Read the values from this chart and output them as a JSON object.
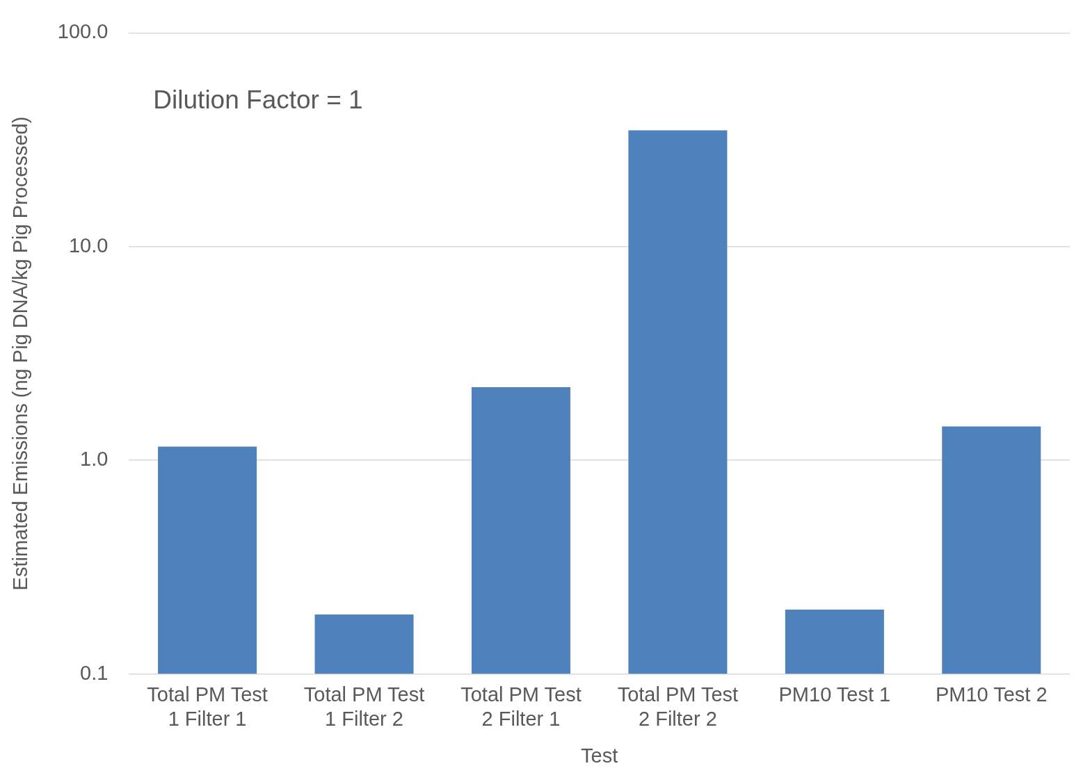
{
  "chart_data": {
    "type": "bar",
    "xlabel": "Test",
    "ylabel": "Estimated Emissions (ng Pig DNA/kg Pig Processed)",
    "categories": [
      "Total PM Test 1 Filter 1",
      "Total PM Test 1 Filter 2",
      "Total PM Test 2 Filter 1",
      "Total PM Test 2 Filter 2",
      "PM10 Test 1",
      "PM10 Test 2"
    ],
    "values": [
      1.16,
      0.19,
      2.2,
      35,
      0.2,
      1.44
    ],
    "color": "#4f81bd",
    "log": "y",
    "ylim": [
      0.1,
      100
    ],
    "yticks": [
      {
        "value": 0.1,
        "label": "0.1"
      },
      {
        "value": 1,
        "label": "1.0"
      },
      {
        "value": 10,
        "label": "10.0"
      },
      {
        "value": 100,
        "label": "100.0"
      }
    ],
    "grid": "y",
    "legend": false,
    "annotations": [
      "Dilution Factor = 1"
    ]
  }
}
